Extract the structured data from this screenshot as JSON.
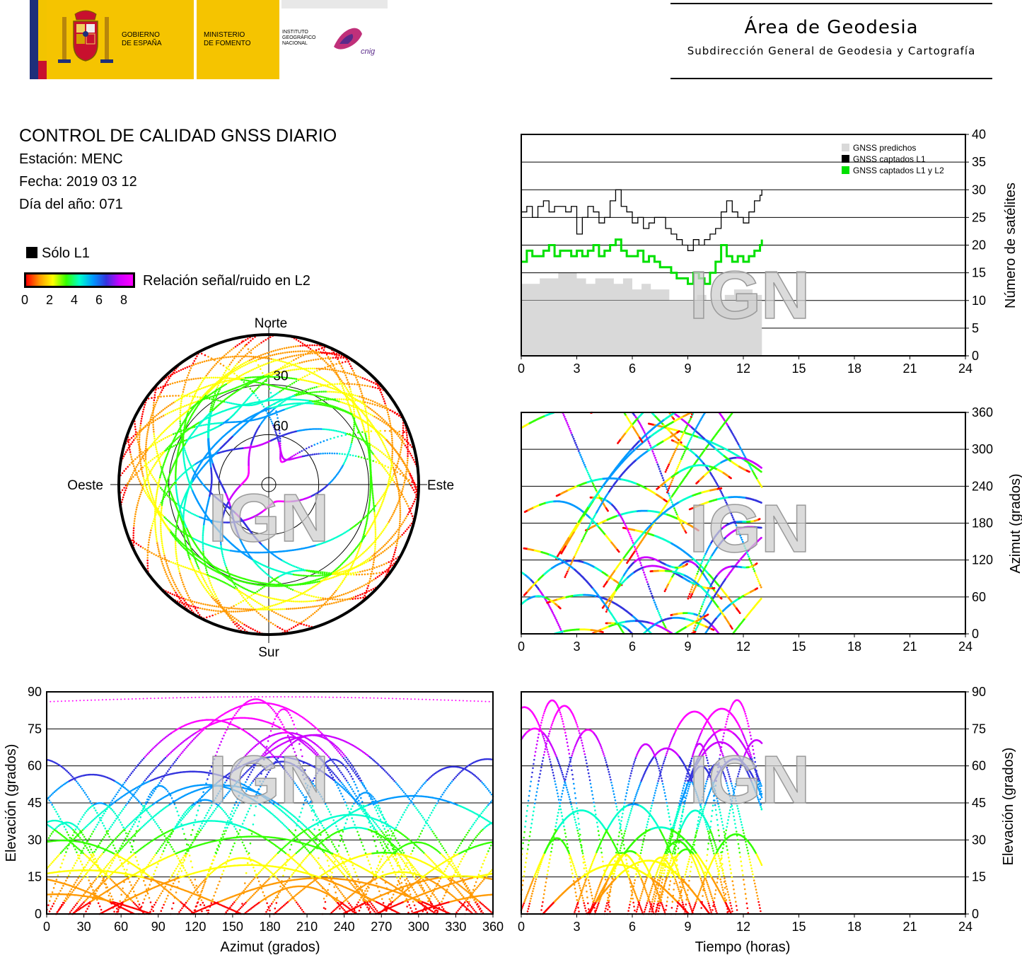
{
  "header": {
    "gov_line1": "GOBIERNO",
    "gov_line2": "DE ESPAÑA",
    "min_line1": "MINISTERIO",
    "min_line2": "DE FOMENTO",
    "ign_line1": "INSTITUTO",
    "ign_line2": "GEOGRÁFICO",
    "ign_line3": "NACIONAL",
    "cnig": "cnig",
    "area_title": "Área de Geodesia",
    "area_subtitle": "Subdirección General de Geodesia y Cartografía"
  },
  "info": {
    "title": "CONTROL DE CALIDAD GNSS DIARIO",
    "station": "Estación: MENC",
    "date": "Fecha: 2019 03 12",
    "doy": "Día del año: 071",
    "legend_l1": "Sólo L1",
    "snr_label": "Relación señal/ruido en L2",
    "snr_ticks": [
      "0",
      "2",
      "4",
      "6",
      "8"
    ]
  },
  "watermark": "IGN",
  "colors": {
    "predicted": "#d9d9d9",
    "l1": "#000000",
    "l1l2": "#00e000",
    "snr_scale": [
      "#ff0000",
      "#ff9900",
      "#ffff00",
      "#33ff00",
      "#00ffcc",
      "#0099ff",
      "#3333dd",
      "#cc00ff",
      "#ff00ff"
    ]
  },
  "chart_data": [
    {
      "id": "satellite-count",
      "type": "area",
      "ylabel": "Número de satélites",
      "xlim": [
        0,
        24
      ],
      "ylim": [
        0,
        40
      ],
      "x_ticks": [
        "0",
        "3",
        "6",
        "9",
        "12",
        "15",
        "18",
        "21",
        "24"
      ],
      "y_ticks": [
        "0",
        "5",
        "10",
        "15",
        "20",
        "25",
        "30",
        "35",
        "40"
      ],
      "grid": "horizontal",
      "legend_position": "top-right",
      "series": [
        {
          "name": "GNSS predichos",
          "x": [
            0,
            0.5,
            1,
            1.5,
            2,
            2.5,
            3,
            3.5,
            4,
            4.5,
            5,
            5.5,
            6,
            6.5,
            7,
            7.5,
            8,
            8.5,
            9,
            9.5,
            10,
            10.5,
            11,
            11.5,
            12,
            12.5,
            13
          ],
          "values": [
            13,
            13,
            14,
            14,
            15,
            15,
            14,
            13,
            14,
            14,
            13,
            14,
            12,
            13,
            12,
            12,
            10,
            9,
            10,
            11,
            10,
            10,
            11,
            12,
            12,
            11,
            13
          ]
        },
        {
          "name": "GNSS captados L1",
          "x": [
            0,
            0.3,
            0.6,
            0.9,
            1.2,
            1.5,
            1.8,
            2.1,
            2.4,
            2.7,
            3.0,
            3.3,
            3.6,
            3.9,
            4.2,
            4.5,
            4.8,
            5.1,
            5.4,
            5.7,
            6.0,
            6.3,
            6.6,
            6.9,
            7.2,
            7.5,
            7.8,
            8.1,
            8.4,
            8.7,
            9.0,
            9.3,
            9.6,
            9.9,
            10.2,
            10.5,
            10.8,
            11.1,
            11.4,
            11.7,
            12.0,
            12.3,
            12.6,
            12.9,
            13.0
          ],
          "values": [
            26,
            27,
            25,
            27,
            28,
            26,
            27,
            27,
            26,
            27,
            22,
            25,
            27,
            26,
            24,
            25,
            28,
            30,
            27,
            26,
            24,
            25,
            23,
            24,
            25,
            25,
            23,
            22,
            21,
            20,
            19,
            21,
            20,
            21,
            22,
            23,
            26,
            28,
            26,
            25,
            24,
            26,
            28,
            29,
            30
          ]
        },
        {
          "name": "GNSS captados L1 y L2",
          "x": [
            0,
            0.3,
            0.6,
            0.9,
            1.2,
            1.5,
            1.8,
            2.1,
            2.4,
            2.7,
            3.0,
            3.3,
            3.6,
            3.9,
            4.2,
            4.5,
            4.8,
            5.1,
            5.4,
            5.7,
            6.0,
            6.3,
            6.6,
            6.9,
            7.2,
            7.5,
            7.8,
            8.1,
            8.4,
            8.7,
            9.0,
            9.3,
            9.6,
            9.9,
            10.2,
            10.5,
            10.8,
            11.1,
            11.4,
            11.7,
            12.0,
            12.3,
            12.6,
            12.9,
            13.0
          ],
          "values": [
            17,
            19,
            18,
            18,
            19,
            20,
            18,
            19,
            19,
            18,
            19,
            18,
            19,
            20,
            18,
            19,
            20,
            21,
            19,
            18,
            18,
            19,
            17,
            18,
            17,
            16,
            16,
            15,
            14,
            14,
            13,
            15,
            14,
            13,
            15,
            17,
            20,
            18,
            17,
            18,
            17,
            18,
            19,
            20,
            21
          ]
        }
      ]
    },
    {
      "id": "azimuth-time",
      "type": "scatter",
      "ylabel": "Azimut (grados)",
      "xlim": [
        0,
        24
      ],
      "ylim": [
        0,
        360
      ],
      "x_ticks": [
        "0",
        "3",
        "6",
        "9",
        "12",
        "15",
        "18",
        "21",
        "24"
      ],
      "y_ticks": [
        "0",
        "60",
        "120",
        "180",
        "240",
        "300",
        "360"
      ],
      "grid": "horizontal"
    },
    {
      "id": "elevation-azimuth",
      "type": "scatter",
      "xlabel": "Azimut (grados)",
      "ylabel": "Elevación (grados)",
      "xlim": [
        0,
        360
      ],
      "ylim": [
        0,
        90
      ],
      "x_ticks": [
        "0",
        "30",
        "60",
        "90",
        "120",
        "150",
        "180",
        "210",
        "240",
        "270",
        "300",
        "330",
        "360"
      ],
      "y_ticks": [
        "0",
        "15",
        "30",
        "45",
        "60",
        "75",
        "90"
      ],
      "grid": "horizontal"
    },
    {
      "id": "elevation-time",
      "type": "scatter",
      "xlabel": "Tiempo (horas)",
      "ylabel": "Elevación (grados)",
      "xlim": [
        0,
        24
      ],
      "ylim": [
        0,
        90
      ],
      "x_ticks": [
        "0",
        "3",
        "6",
        "9",
        "12",
        "15",
        "18",
        "21",
        "24"
      ],
      "y_ticks": [
        "0",
        "15",
        "30",
        "45",
        "60",
        "75",
        "90"
      ],
      "grid": "horizontal"
    },
    {
      "id": "skyplot",
      "type": "scatter",
      "labels": {
        "north": "Norte",
        "south": "Sur",
        "west": "Oeste",
        "east": "Este"
      },
      "ring_labels": [
        "30",
        "60"
      ]
    }
  ]
}
